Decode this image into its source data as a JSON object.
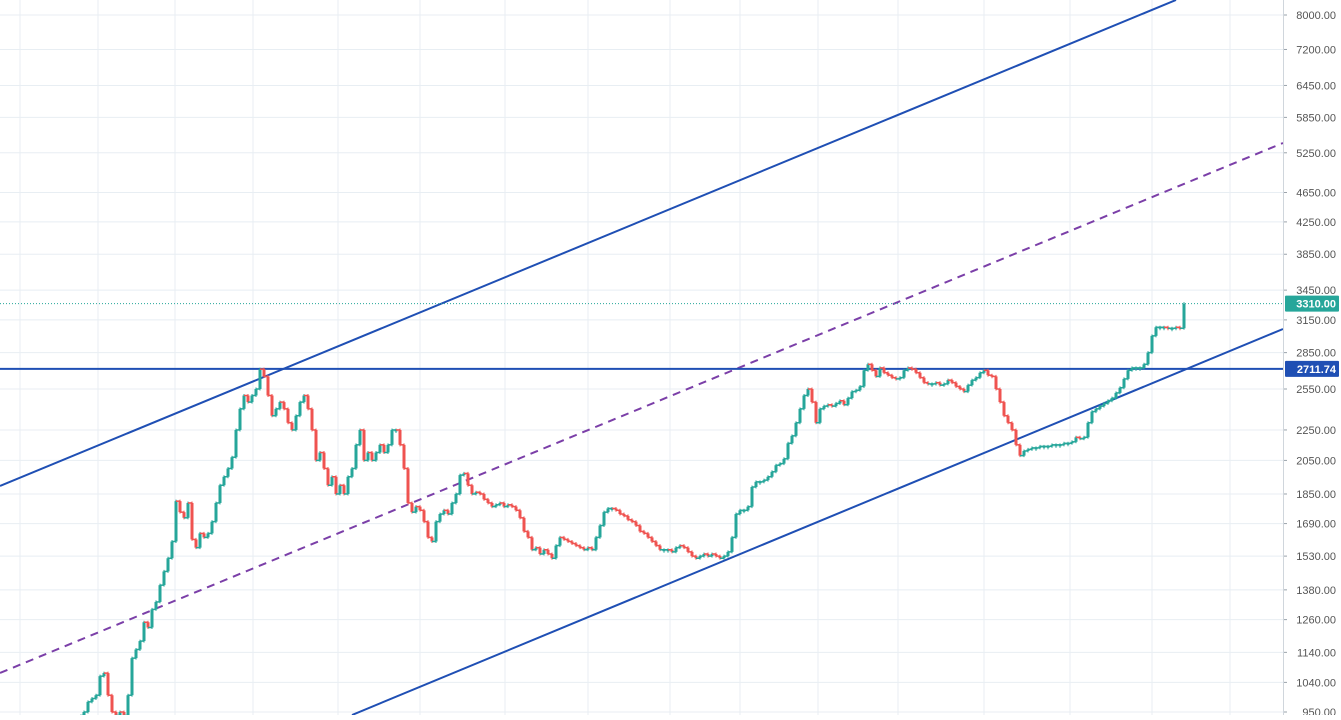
{
  "chart_data": {
    "type": "candlestick",
    "title": "",
    "xlabel": "",
    "ylabel": "",
    "y_scale": "log",
    "ylim": [
      940,
      8300
    ],
    "grid": true,
    "legend": "none",
    "y_ticks": [
      "8000.00",
      "7200.00",
      "6450.00",
      "5850.00",
      "5250.00",
      "4650.00",
      "4250.00",
      "3850.00",
      "3450.00",
      "3150.00",
      "2850.00",
      "2550.00",
      "2250.00",
      "2050.00",
      "1850.00",
      "1690.00",
      "1530.00",
      "1380.00",
      "1260.00",
      "1140.00",
      "1040.00",
      "950.00"
    ],
    "price_labels": [
      {
        "text": "3310.00",
        "value": 3310,
        "color": "#26a69a"
      },
      {
        "text": "2711.74",
        "value": 2711.74,
        "color": "#1f4fb4"
      }
    ],
    "colors": {
      "up": "#26a69a",
      "down": "#ef5350",
      "channel": "#1f4fb4",
      "midline": "#7b3fa8",
      "grid": "#e8eef3",
      "axis_text": "#555555"
    },
    "price_path": [
      [
        80,
        940
      ],
      [
        84,
        950
      ],
      [
        88,
        980
      ],
      [
        92,
        990
      ],
      [
        96,
        1000
      ],
      [
        100,
        1060
      ],
      [
        104,
        1070
      ],
      [
        108,
        1000
      ],
      [
        112,
        950
      ],
      [
        116,
        940
      ],
      [
        120,
        950
      ],
      [
        124,
        940
      ],
      [
        128,
        1000
      ],
      [
        132,
        1120
      ],
      [
        136,
        1150
      ],
      [
        140,
        1180
      ],
      [
        144,
        1250
      ],
      [
        148,
        1230
      ],
      [
        152,
        1300
      ],
      [
        156,
        1330
      ],
      [
        160,
        1400
      ],
      [
        164,
        1460
      ],
      [
        168,
        1520
      ],
      [
        172,
        1600
      ],
      [
        176,
        1810
      ],
      [
        180,
        1750
      ],
      [
        184,
        1720
      ],
      [
        188,
        1800
      ],
      [
        192,
        1610
      ],
      [
        196,
        1570
      ],
      [
        200,
        1640
      ],
      [
        204,
        1620
      ],
      [
        208,
        1640
      ],
      [
        212,
        1700
      ],
      [
        216,
        1800
      ],
      [
        220,
        1900
      ],
      [
        224,
        1950
      ],
      [
        228,
        2000
      ],
      [
        232,
        2070
      ],
      [
        236,
        2250
      ],
      [
        240,
        2400
      ],
      [
        244,
        2500
      ],
      [
        248,
        2450
      ],
      [
        252,
        2500
      ],
      [
        256,
        2550
      ],
      [
        260,
        2710
      ],
      [
        264,
        2650
      ],
      [
        268,
        2500
      ],
      [
        272,
        2350
      ],
      [
        276,
        2400
      ],
      [
        280,
        2450
      ],
      [
        284,
        2400
      ],
      [
        288,
        2300
      ],
      [
        292,
        2250
      ],
      [
        296,
        2350
      ],
      [
        300,
        2450
      ],
      [
        304,
        2500
      ],
      [
        308,
        2400
      ],
      [
        312,
        2250
      ],
      [
        316,
        2050
      ],
      [
        320,
        2100
      ],
      [
        324,
        2000
      ],
      [
        328,
        1900
      ],
      [
        332,
        1950
      ],
      [
        336,
        1850
      ],
      [
        340,
        1900
      ],
      [
        344,
        1850
      ],
      [
        348,
        1950
      ],
      [
        352,
        2000
      ],
      [
        356,
        2150
      ],
      [
        360,
        2250
      ],
      [
        364,
        2050
      ],
      [
        368,
        2100
      ],
      [
        372,
        2050
      ],
      [
        376,
        2100
      ],
      [
        380,
        2150
      ],
      [
        384,
        2100
      ],
      [
        388,
        2150
      ],
      [
        392,
        2250
      ],
      [
        396,
        2250
      ],
      [
        400,
        2150
      ],
      [
        404,
        2000
      ],
      [
        408,
        1800
      ],
      [
        412,
        1750
      ],
      [
        416,
        1780
      ],
      [
        420,
        1760
      ],
      [
        424,
        1700
      ],
      [
        428,
        1620
      ],
      [
        432,
        1600
      ],
      [
        436,
        1700
      ],
      [
        440,
        1740
      ],
      [
        444,
        1760
      ],
      [
        448,
        1740
      ],
      [
        452,
        1800
      ],
      [
        456,
        1850
      ],
      [
        460,
        1960
      ],
      [
        464,
        1970
      ],
      [
        468,
        1900
      ],
      [
        472,
        1850
      ],
      [
        476,
        1860
      ],
      [
        480,
        1850
      ],
      [
        484,
        1820
      ],
      [
        488,
        1800
      ],
      [
        492,
        1780
      ],
      [
        496,
        1790
      ],
      [
        500,
        1800
      ],
      [
        504,
        1780
      ],
      [
        508,
        1790
      ],
      [
        512,
        1780
      ],
      [
        516,
        1760
      ],
      [
        520,
        1720
      ],
      [
        524,
        1650
      ],
      [
        528,
        1620
      ],
      [
        532,
        1560
      ],
      [
        536,
        1570
      ],
      [
        540,
        1540
      ],
      [
        544,
        1560
      ],
      [
        548,
        1540
      ],
      [
        552,
        1520
      ],
      [
        556,
        1580
      ],
      [
        560,
        1620
      ],
      [
        564,
        1610
      ],
      [
        568,
        1600
      ],
      [
        572,
        1590
      ],
      [
        576,
        1580
      ],
      [
        580,
        1570
      ],
      [
        584,
        1560
      ],
      [
        588,
        1570
      ],
      [
        592,
        1560
      ],
      [
        596,
        1620
      ],
      [
        600,
        1680
      ],
      [
        604,
        1750
      ],
      [
        608,
        1770
      ],
      [
        612,
        1770
      ],
      [
        616,
        1760
      ],
      [
        620,
        1740
      ],
      [
        624,
        1730
      ],
      [
        628,
        1710
      ],
      [
        632,
        1700
      ],
      [
        636,
        1680
      ],
      [
        640,
        1650
      ],
      [
        644,
        1640
      ],
      [
        648,
        1620
      ],
      [
        652,
        1600
      ],
      [
        656,
        1580
      ],
      [
        660,
        1560
      ],
      [
        664,
        1560
      ],
      [
        668,
        1560
      ],
      [
        672,
        1550
      ],
      [
        676,
        1570
      ],
      [
        680,
        1580
      ],
      [
        684,
        1570
      ],
      [
        688,
        1550
      ],
      [
        692,
        1530
      ],
      [
        696,
        1520
      ],
      [
        700,
        1530
      ],
      [
        704,
        1540
      ],
      [
        708,
        1530
      ],
      [
        712,
        1540
      ],
      [
        716,
        1530
      ],
      [
        720,
        1520
      ],
      [
        724,
        1530
      ],
      [
        728,
        1550
      ],
      [
        732,
        1620
      ],
      [
        736,
        1740
      ],
      [
        740,
        1760
      ],
      [
        744,
        1760
      ],
      [
        748,
        1780
      ],
      [
        752,
        1890
      ],
      [
        756,
        1920
      ],
      [
        760,
        1920
      ],
      [
        764,
        1930
      ],
      [
        768,
        1950
      ],
      [
        772,
        1980
      ],
      [
        776,
        2020
      ],
      [
        780,
        2030
      ],
      [
        784,
        2060
      ],
      [
        788,
        2160
      ],
      [
        792,
        2210
      ],
      [
        796,
        2300
      ],
      [
        800,
        2400
      ],
      [
        804,
        2500
      ],
      [
        808,
        2550
      ],
      [
        812,
        2450
      ],
      [
        816,
        2300
      ],
      [
        820,
        2400
      ],
      [
        824,
        2420
      ],
      [
        828,
        2430
      ],
      [
        832,
        2420
      ],
      [
        836,
        2440
      ],
      [
        840,
        2460
      ],
      [
        844,
        2430
      ],
      [
        848,
        2480
      ],
      [
        852,
        2530
      ],
      [
        856,
        2540
      ],
      [
        860,
        2570
      ],
      [
        864,
        2700
      ],
      [
        868,
        2750
      ],
      [
        872,
        2700
      ],
      [
        876,
        2650
      ],
      [
        880,
        2720
      ],
      [
        884,
        2680
      ],
      [
        888,
        2660
      ],
      [
        892,
        2640
      ],
      [
        896,
        2630
      ],
      [
        900,
        2640
      ],
      [
        904,
        2700
      ],
      [
        908,
        2720
      ],
      [
        912,
        2710
      ],
      [
        916,
        2680
      ],
      [
        920,
        2640
      ],
      [
        924,
        2600
      ],
      [
        928,
        2590
      ],
      [
        932,
        2590
      ],
      [
        936,
        2600
      ],
      [
        940,
        2580
      ],
      [
        944,
        2590
      ],
      [
        948,
        2620
      ],
      [
        952,
        2600
      ],
      [
        956,
        2570
      ],
      [
        960,
        2550
      ],
      [
        964,
        2530
      ],
      [
        968,
        2580
      ],
      [
        972,
        2620
      ],
      [
        976,
        2640
      ],
      [
        980,
        2680
      ],
      [
        984,
        2700
      ],
      [
        988,
        2660
      ],
      [
        992,
        2650
      ],
      [
        996,
        2550
      ],
      [
        1000,
        2450
      ],
      [
        1004,
        2350
      ],
      [
        1008,
        2300
      ],
      [
        1012,
        2250
      ],
      [
        1016,
        2150
      ],
      [
        1020,
        2080
      ],
      [
        1024,
        2110
      ],
      [
        1028,
        2120
      ],
      [
        1032,
        2130
      ],
      [
        1036,
        2130
      ],
      [
        1040,
        2140
      ],
      [
        1044,
        2140
      ],
      [
        1048,
        2140
      ],
      [
        1052,
        2150
      ],
      [
        1056,
        2150
      ],
      [
        1060,
        2150
      ],
      [
        1064,
        2160
      ],
      [
        1068,
        2160
      ],
      [
        1072,
        2170
      ],
      [
        1076,
        2200
      ],
      [
        1080,
        2190
      ],
      [
        1084,
        2200
      ],
      [
        1088,
        2300
      ],
      [
        1092,
        2380
      ],
      [
        1096,
        2400
      ],
      [
        1100,
        2420
      ],
      [
        1104,
        2440
      ],
      [
        1108,
        2460
      ],
      [
        1112,
        2480
      ],
      [
        1116,
        2520
      ],
      [
        1120,
        2560
      ],
      [
        1124,
        2630
      ],
      [
        1128,
        2700
      ],
      [
        1132,
        2720
      ],
      [
        1136,
        2720
      ],
      [
        1140,
        2720
      ],
      [
        1144,
        2750
      ],
      [
        1148,
        2850
      ],
      [
        1152,
        3000
      ],
      [
        1156,
        3080
      ],
      [
        1160,
        3080
      ],
      [
        1164,
        3080
      ],
      [
        1168,
        3070
      ],
      [
        1172,
        3070
      ],
      [
        1176,
        3080
      ],
      [
        1180,
        3070
      ],
      [
        1184,
        3310
      ]
    ]
  }
}
